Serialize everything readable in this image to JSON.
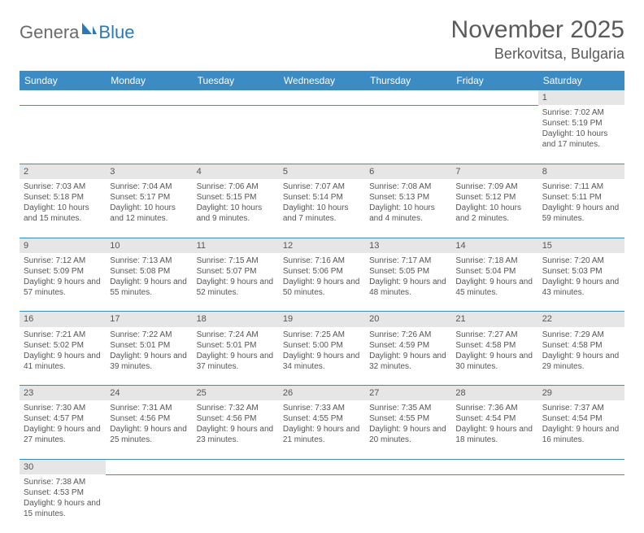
{
  "logo": {
    "text1": "Genera",
    "text2": "Blue"
  },
  "title": "November 2025",
  "location": "Berkovitsa, Bulgaria",
  "colors": {
    "header_bg": "#3b8bc4",
    "header_text": "#ffffff",
    "daynum_bg": "#e6e6e6",
    "border": "#3b8bc4",
    "text": "#555555"
  },
  "weekdays": [
    "Sunday",
    "Monday",
    "Tuesday",
    "Wednesday",
    "Thursday",
    "Friday",
    "Saturday"
  ],
  "weeks": [
    [
      null,
      null,
      null,
      null,
      null,
      null,
      {
        "n": "1",
        "sr": "7:02 AM",
        "ss": "5:19 PM",
        "dl": "10 hours and 17 minutes."
      }
    ],
    [
      {
        "n": "2",
        "sr": "7:03 AM",
        "ss": "5:18 PM",
        "dl": "10 hours and 15 minutes."
      },
      {
        "n": "3",
        "sr": "7:04 AM",
        "ss": "5:17 PM",
        "dl": "10 hours and 12 minutes."
      },
      {
        "n": "4",
        "sr": "7:06 AM",
        "ss": "5:15 PM",
        "dl": "10 hours and 9 minutes."
      },
      {
        "n": "5",
        "sr": "7:07 AM",
        "ss": "5:14 PM",
        "dl": "10 hours and 7 minutes."
      },
      {
        "n": "6",
        "sr": "7:08 AM",
        "ss": "5:13 PM",
        "dl": "10 hours and 4 minutes."
      },
      {
        "n": "7",
        "sr": "7:09 AM",
        "ss": "5:12 PM",
        "dl": "10 hours and 2 minutes."
      },
      {
        "n": "8",
        "sr": "7:11 AM",
        "ss": "5:11 PM",
        "dl": "9 hours and 59 minutes."
      }
    ],
    [
      {
        "n": "9",
        "sr": "7:12 AM",
        "ss": "5:09 PM",
        "dl": "9 hours and 57 minutes."
      },
      {
        "n": "10",
        "sr": "7:13 AM",
        "ss": "5:08 PM",
        "dl": "9 hours and 55 minutes."
      },
      {
        "n": "11",
        "sr": "7:15 AM",
        "ss": "5:07 PM",
        "dl": "9 hours and 52 minutes."
      },
      {
        "n": "12",
        "sr": "7:16 AM",
        "ss": "5:06 PM",
        "dl": "9 hours and 50 minutes."
      },
      {
        "n": "13",
        "sr": "7:17 AM",
        "ss": "5:05 PM",
        "dl": "9 hours and 48 minutes."
      },
      {
        "n": "14",
        "sr": "7:18 AM",
        "ss": "5:04 PM",
        "dl": "9 hours and 45 minutes."
      },
      {
        "n": "15",
        "sr": "7:20 AM",
        "ss": "5:03 PM",
        "dl": "9 hours and 43 minutes."
      }
    ],
    [
      {
        "n": "16",
        "sr": "7:21 AM",
        "ss": "5:02 PM",
        "dl": "9 hours and 41 minutes."
      },
      {
        "n": "17",
        "sr": "7:22 AM",
        "ss": "5:01 PM",
        "dl": "9 hours and 39 minutes."
      },
      {
        "n": "18",
        "sr": "7:24 AM",
        "ss": "5:01 PM",
        "dl": "9 hours and 37 minutes."
      },
      {
        "n": "19",
        "sr": "7:25 AM",
        "ss": "5:00 PM",
        "dl": "9 hours and 34 minutes."
      },
      {
        "n": "20",
        "sr": "7:26 AM",
        "ss": "4:59 PM",
        "dl": "9 hours and 32 minutes."
      },
      {
        "n": "21",
        "sr": "7:27 AM",
        "ss": "4:58 PM",
        "dl": "9 hours and 30 minutes."
      },
      {
        "n": "22",
        "sr": "7:29 AM",
        "ss": "4:58 PM",
        "dl": "9 hours and 29 minutes."
      }
    ],
    [
      {
        "n": "23",
        "sr": "7:30 AM",
        "ss": "4:57 PM",
        "dl": "9 hours and 27 minutes."
      },
      {
        "n": "24",
        "sr": "7:31 AM",
        "ss": "4:56 PM",
        "dl": "9 hours and 25 minutes."
      },
      {
        "n": "25",
        "sr": "7:32 AM",
        "ss": "4:56 PM",
        "dl": "9 hours and 23 minutes."
      },
      {
        "n": "26",
        "sr": "7:33 AM",
        "ss": "4:55 PM",
        "dl": "9 hours and 21 minutes."
      },
      {
        "n": "27",
        "sr": "7:35 AM",
        "ss": "4:55 PM",
        "dl": "9 hours and 20 minutes."
      },
      {
        "n": "28",
        "sr": "7:36 AM",
        "ss": "4:54 PM",
        "dl": "9 hours and 18 minutes."
      },
      {
        "n": "29",
        "sr": "7:37 AM",
        "ss": "4:54 PM",
        "dl": "9 hours and 16 minutes."
      }
    ],
    [
      {
        "n": "30",
        "sr": "7:38 AM",
        "ss": "4:53 PM",
        "dl": "9 hours and 15 minutes."
      },
      null,
      null,
      null,
      null,
      null,
      null
    ]
  ],
  "labels": {
    "sunrise": "Sunrise: ",
    "sunset": "Sunset: ",
    "daylight": "Daylight: "
  }
}
